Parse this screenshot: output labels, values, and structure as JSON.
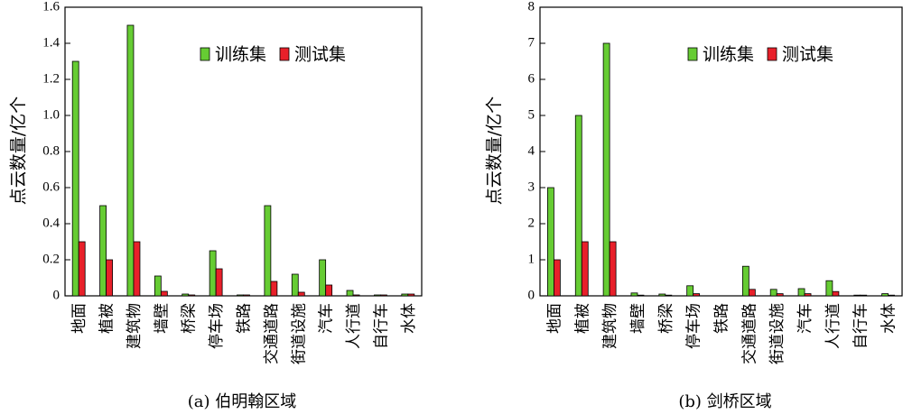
{
  "colors": {
    "train": "#66cc33",
    "test": "#e8202a"
  },
  "chart_data": [
    {
      "type": "bar",
      "caption": "(a) 伯明翰区域",
      "ylabel": "点云数量/亿个",
      "ylim": [
        0,
        1.6
      ],
      "yticks": [
        "0",
        "0.2",
        "0.4",
        "0.6",
        "0.8",
        "1.0",
        "1.2",
        "1.4",
        "1.6"
      ],
      "legend_position": "top-right",
      "categories": [
        "地面",
        "植被",
        "建筑物",
        "墙壁",
        "桥梁",
        "停车场",
        "铁路",
        "交通道路",
        "街道设施",
        "汽车",
        "人行道",
        "自行车",
        "水体"
      ],
      "series": [
        {
          "name": "训练集",
          "values": [
            1.3,
            0.5,
            1.5,
            0.11,
            0.01,
            0.25,
            0.005,
            0.5,
            0.12,
            0.2,
            0.03,
            0.005,
            0.01
          ]
        },
        {
          "name": "测试集",
          "values": [
            0.3,
            0.2,
            0.3,
            0.025,
            0.005,
            0.15,
            0.005,
            0.08,
            0.02,
            0.06,
            0.005,
            0.005,
            0.01
          ]
        }
      ]
    },
    {
      "type": "bar",
      "caption": "(b) 剑桥区域",
      "ylabel": "点云数量/亿个",
      "ylim": [
        0,
        8
      ],
      "yticks": [
        "0",
        "1",
        "2",
        "3",
        "4",
        "5",
        "6",
        "7",
        "8"
      ],
      "legend_position": "top-right",
      "categories": [
        "地面",
        "植被",
        "建筑物",
        "墙壁",
        "桥梁",
        "停车场",
        "铁路",
        "交通道路",
        "街道设施",
        "汽车",
        "人行道",
        "自行车",
        "水体"
      ],
      "series": [
        {
          "name": "训练集",
          "values": [
            3.0,
            5.0,
            7.0,
            0.08,
            0.05,
            0.28,
            0.0,
            0.82,
            0.18,
            0.2,
            0.42,
            0.02,
            0.06
          ]
        },
        {
          "name": "测试集",
          "values": [
            1.0,
            1.5,
            1.5,
            0.02,
            0.02,
            0.06,
            0.0,
            0.18,
            0.06,
            0.06,
            0.12,
            0.02,
            0.02
          ]
        }
      ]
    }
  ]
}
